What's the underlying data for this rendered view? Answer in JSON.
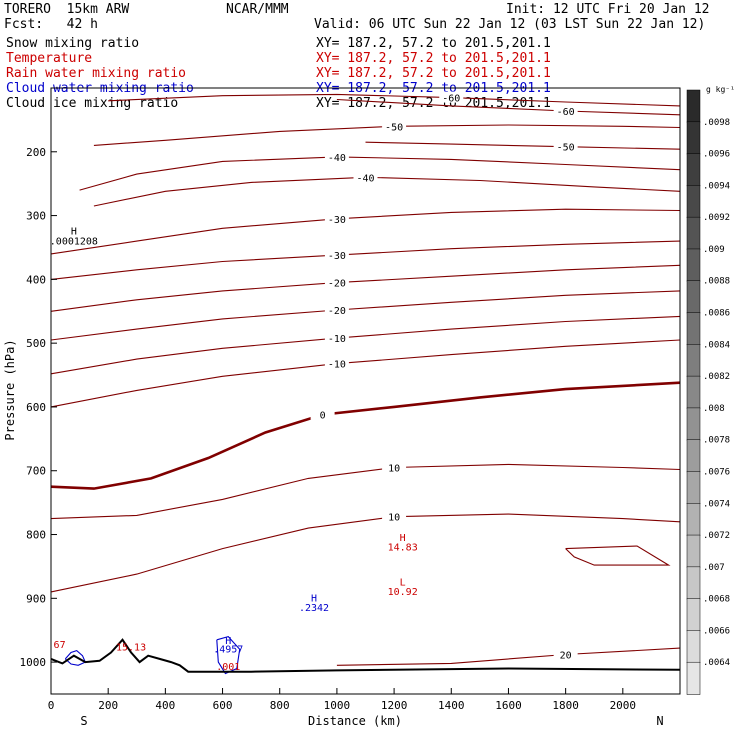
{
  "header": {
    "model": "TORERO  15km ARW",
    "org": "NCAR/MMM",
    "init": "Init: 12 UTC Fri 20 Jan 12",
    "fcst": "Fcst:   42 h",
    "valid": "Valid: 06 UTC Sun 22 Jan 12 (03 LST Sun 22 Jan 12)"
  },
  "fields": [
    {
      "label": "Snow mixing ratio",
      "xy": "",
      "color": "#000000"
    },
    {
      "label": "Temperature",
      "xy": "XY= 187.2, 57.2 to 201.5,201.1",
      "color": "#cc0000"
    },
    {
      "label": "Rain water mixing ratio",
      "xy": "XY= 187.2, 57.2 to 201.5,201.1",
      "color": "#cc0000"
    },
    {
      "label": "Cloud water mixing ratio",
      "xy": "XY= 187.2, 57.2 to 201.5,201.1",
      "color": "#0000cc"
    },
    {
      "label": "Cloud ice mixing ratio",
      "xy": "XY= 187.2, 57.2 to 201.5,201.1",
      "color": "#000000"
    }
  ],
  "xy_first": "XY= 187.2, 57.2 to 201.5,201.1",
  "chart_data": {
    "type": "line",
    "xlabel": "Distance (km)",
    "ylabel": "Pressure (hPa)",
    "xlim": [
      0,
      2200
    ],
    "ylim": [
      1050,
      100
    ],
    "x_ticks": [
      "0",
      "200",
      "400",
      "600",
      "800",
      "1000",
      "1200",
      "1400",
      "1600",
      "1800",
      "2000"
    ],
    "y_ticks": [
      "200",
      "300",
      "400",
      "500",
      "600",
      "700",
      "800",
      "900",
      "1000"
    ],
    "x_ends": {
      "left": "S",
      "right": "N"
    },
    "temperature_contours": [
      {
        "level": -60,
        "label": "-60",
        "points": [
          [
            200,
            120
          ],
          [
            600,
            112
          ],
          [
            1000,
            110
          ],
          [
            1400,
            115
          ],
          [
            1800,
            122
          ],
          [
            2200,
            128
          ]
        ]
      },
      {
        "level": -60,
        "label": "-60",
        "points": [
          [
            1000,
            118
          ],
          [
            1400,
            128
          ],
          [
            1800,
            136
          ],
          [
            2200,
            142
          ]
        ]
      },
      {
        "level": -50,
        "label": "-50",
        "points": [
          [
            150,
            190
          ],
          [
            400,
            182
          ],
          [
            800,
            168
          ],
          [
            1200,
            160
          ],
          [
            1600,
            158
          ],
          [
            2000,
            160
          ],
          [
            2200,
            162
          ]
        ]
      },
      {
        "level": -50,
        "label": "-50",
        "points": [
          [
            1100,
            185
          ],
          [
            1400,
            188
          ],
          [
            1800,
            192
          ],
          [
            2200,
            196
          ]
        ]
      },
      {
        "level": -40,
        "label": "-40",
        "points": [
          [
            100,
            260
          ],
          [
            300,
            235
          ],
          [
            600,
            215
          ],
          [
            1000,
            208
          ],
          [
            1400,
            212
          ],
          [
            1800,
            220
          ],
          [
            2200,
            228
          ]
        ]
      },
      {
        "level": -40,
        "label": "-40",
        "points": [
          [
            150,
            285
          ],
          [
            400,
            262
          ],
          [
            700,
            248
          ],
          [
            1100,
            240
          ],
          [
            1500,
            245
          ],
          [
            1900,
            255
          ],
          [
            2200,
            262
          ]
        ]
      },
      {
        "level": -30,
        "label": "-30",
        "points": [
          [
            0,
            360
          ],
          [
            300,
            340
          ],
          [
            600,
            320
          ],
          [
            1000,
            305
          ],
          [
            1400,
            295
          ],
          [
            1800,
            290
          ],
          [
            2200,
            292
          ]
        ]
      },
      {
        "level": -30,
        "label": "-30",
        "points": [
          [
            0,
            400
          ],
          [
            300,
            385
          ],
          [
            600,
            372
          ],
          [
            1000,
            362
          ],
          [
            1400,
            352
          ],
          [
            1800,
            345
          ],
          [
            2200,
            340
          ]
        ]
      },
      {
        "level": -20,
        "label": "-20",
        "points": [
          [
            0,
            450
          ],
          [
            300,
            432
          ],
          [
            600,
            418
          ],
          [
            1000,
            405
          ],
          [
            1400,
            395
          ],
          [
            1800,
            385
          ],
          [
            2200,
            378
          ]
        ]
      },
      {
        "level": -20,
        "label": "-20",
        "points": [
          [
            0,
            495
          ],
          [
            300,
            478
          ],
          [
            600,
            462
          ],
          [
            1000,
            448
          ],
          [
            1400,
            436
          ],
          [
            1800,
            425
          ],
          [
            2200,
            418
          ]
        ]
      },
      {
        "level": -10,
        "label": "-10",
        "points": [
          [
            0,
            548
          ],
          [
            300,
            525
          ],
          [
            600,
            508
          ],
          [
            1000,
            492
          ],
          [
            1400,
            478
          ],
          [
            1800,
            466
          ],
          [
            2200,
            458
          ]
        ]
      },
      {
        "level": -10,
        "label": "-10",
        "points": [
          [
            0,
            600
          ],
          [
            300,
            574
          ],
          [
            600,
            552
          ],
          [
            1000,
            532
          ],
          [
            1400,
            518
          ],
          [
            1800,
            505
          ],
          [
            2200,
            495
          ]
        ]
      },
      {
        "level": 0,
        "label": "0",
        "bold": true,
        "points": [
          [
            0,
            725
          ],
          [
            150,
            728
          ],
          [
            350,
            712
          ],
          [
            550,
            680
          ],
          [
            750,
            640
          ],
          [
            950,
            612
          ],
          [
            1200,
            600
          ],
          [
            1500,
            585
          ],
          [
            1800,
            572
          ],
          [
            2200,
            562
          ]
        ]
      },
      {
        "level": 10,
        "label": "10",
        "points": [
          [
            0,
            775
          ],
          [
            300,
            770
          ],
          [
            600,
            745
          ],
          [
            900,
            712
          ],
          [
            1200,
            695
          ],
          [
            1600,
            690
          ],
          [
            2000,
            695
          ],
          [
            2200,
            698
          ]
        ]
      },
      {
        "level": 10,
        "label": "10",
        "points": [
          [
            0,
            890
          ],
          [
            300,
            862
          ],
          [
            600,
            822
          ],
          [
            900,
            790
          ],
          [
            1200,
            772
          ],
          [
            1600,
            768
          ],
          [
            2000,
            775
          ],
          [
            2200,
            780
          ]
        ]
      },
      {
        "level": 15,
        "label": "",
        "points": [
          [
            1800,
            822
          ],
          [
            2050,
            818
          ],
          [
            2160,
            848
          ],
          [
            1900,
            848
          ],
          [
            1830,
            835
          ],
          [
            1800,
            822
          ]
        ]
      },
      {
        "level": 20,
        "label": "20",
        "points": [
          [
            1000,
            1005
          ],
          [
            1400,
            1002
          ],
          [
            1800,
            988
          ],
          [
            2200,
            978
          ]
        ]
      }
    ],
    "cloud_water_contours": [
      {
        "points": [
          [
            50,
            995
          ],
          [
            70,
            985
          ],
          [
            90,
            982
          ],
          [
            110,
            990
          ],
          [
            120,
            1000
          ],
          [
            95,
            1005
          ],
          [
            70,
            1003
          ],
          [
            50,
            995
          ]
        ]
      },
      {
        "points": [
          [
            580,
            965
          ],
          [
            620,
            960
          ],
          [
            660,
            980
          ],
          [
            650,
            1010
          ],
          [
            610,
            1018
          ],
          [
            585,
            1000
          ],
          [
            580,
            965
          ]
        ]
      }
    ],
    "terrain": [
      [
        0,
        995
      ],
      [
        40,
        1002
      ],
      [
        80,
        990
      ],
      [
        120,
        1000
      ],
      [
        170,
        998
      ],
      [
        210,
        985
      ],
      [
        250,
        965
      ],
      [
        280,
        985
      ],
      [
        310,
        1000
      ],
      [
        340,
        990
      ],
      [
        380,
        995
      ],
      [
        420,
        1000
      ],
      [
        450,
        1005
      ],
      [
        480,
        1015
      ],
      [
        700,
        1015
      ],
      [
        1000,
        1013
      ],
      [
        1600,
        1010
      ],
      [
        2200,
        1012
      ]
    ],
    "annotations": [
      {
        "text": "H",
        "x": 80,
        "y": 330,
        "color": "#000000"
      },
      {
        "text": ".0001208",
        "x": 80,
        "y": 345,
        "color": "#000000"
      },
      {
        "text": "H",
        "x": 1230,
        "y": 810,
        "color": "#cc0000"
      },
      {
        "text": "14.83",
        "x": 1230,
        "y": 825,
        "color": "#cc0000"
      },
      {
        "text": "L",
        "x": 1230,
        "y": 880,
        "color": "#cc0000"
      },
      {
        "text": "10.92",
        "x": 1230,
        "y": 895,
        "color": "#cc0000"
      },
      {
        "text": "H",
        "x": 920,
        "y": 905,
        "color": "#0000cc"
      },
      {
        "text": ".2342",
        "x": 920,
        "y": 920,
        "color": "#0000cc"
      },
      {
        "text": "H",
        "x": 620,
        "y": 972,
        "color": "#0000cc"
      },
      {
        "text": ".4957",
        "x": 620,
        "y": 985,
        "color": "#0000cc"
      },
      {
        "text": ".001",
        "x": 620,
        "y": 1012,
        "color": "#cc0000"
      },
      {
        "text": "67",
        "x": 30,
        "y": 978,
        "color": "#cc0000"
      },
      {
        "text": "15.13",
        "x": 280,
        "y": 982,
        "color": "#cc0000"
      }
    ]
  },
  "colorbar": {
    "unit": "g kg⁻¹",
    "labels": [
      ".0098",
      ".0096",
      ".0094",
      ".0092",
      ".009",
      ".0088",
      ".0086",
      ".0084",
      ".0082",
      ".008",
      ".0078",
      ".0076",
      ".0074",
      ".0072",
      ".007",
      ".0068",
      ".0066",
      ".0064"
    ],
    "dark": "#2a2a2a",
    "light": "#e6e6e6"
  }
}
